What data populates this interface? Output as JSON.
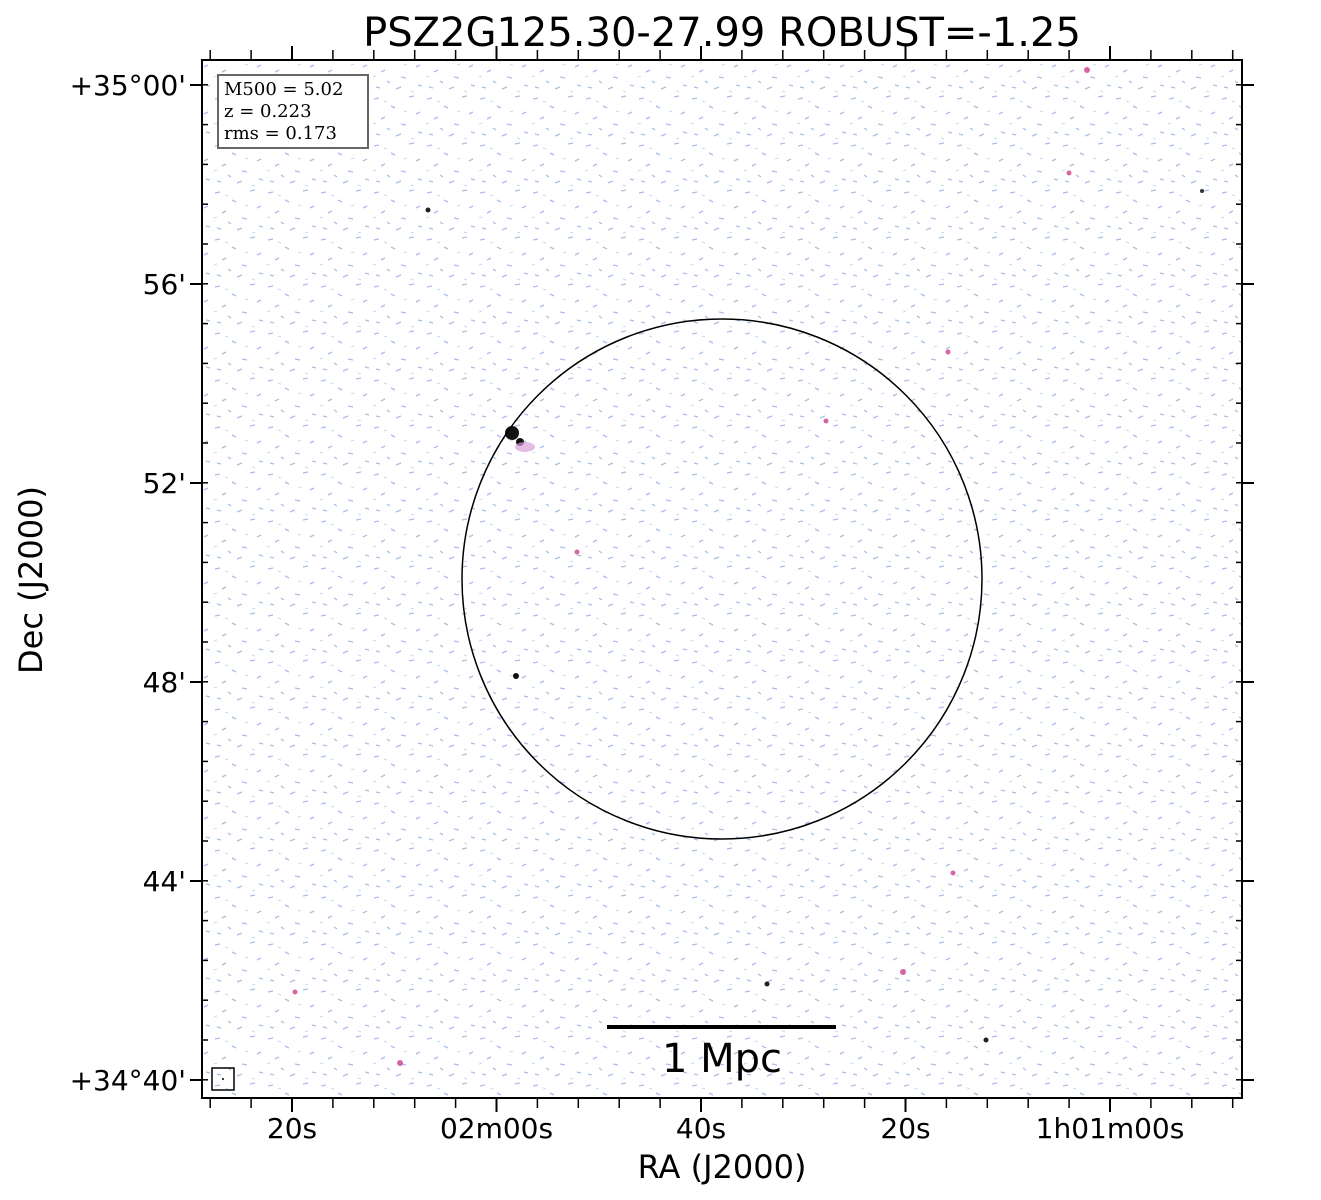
{
  "title": "PSZ2G125.30-27.99 ROBUST=-1.25",
  "x_axis": {
    "label": "RA (J2000)",
    "ticks": [
      "20s",
      "02m00s",
      "40s",
      "20s",
      "1h01m00s"
    ]
  },
  "y_axis": {
    "label": "Dec (J2000)",
    "ticks": [
      "+35°00'",
      "56'",
      "52'",
      "48'",
      "44'",
      "+34°40'"
    ]
  },
  "info": [
    "M500 = 5.02",
    "z = 0.223",
    "rms = 0.173"
  ],
  "scale_bar": "1 Mpc"
}
